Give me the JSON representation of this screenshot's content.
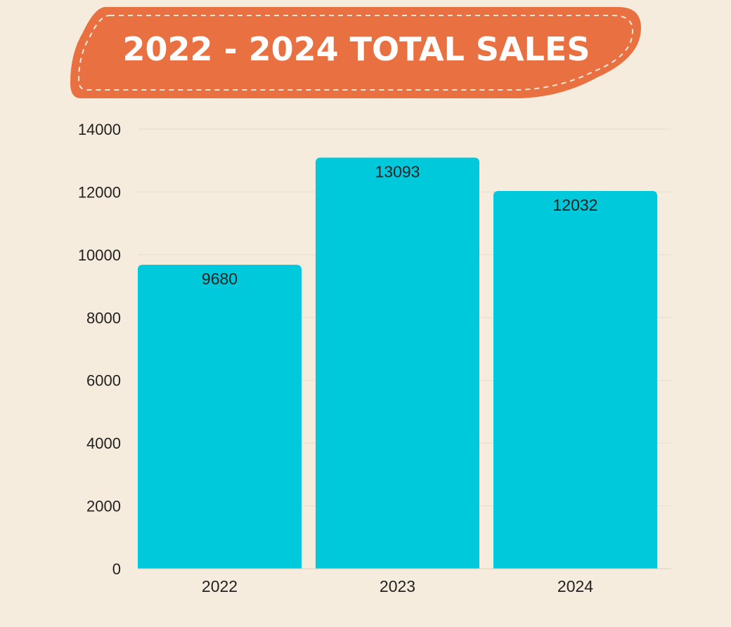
{
  "colors": {
    "background": "#f6ecdd",
    "banner": "#e97141",
    "bar": "#00c9dc",
    "grid": "#e8dccb",
    "text": "#222222"
  },
  "chart_data": {
    "type": "bar",
    "title": "2022 - 2024 TOTAL SALES",
    "xlabel": "",
    "ylabel": "",
    "categories": [
      "2022",
      "2023",
      "2024"
    ],
    "values": [
      9680,
      13093,
      12032
    ],
    "data_labels": [
      "9680",
      "13093",
      "12032"
    ],
    "ylim": [
      0,
      14000
    ],
    "yticks": [
      0,
      2000,
      4000,
      6000,
      8000,
      10000,
      12000,
      14000
    ],
    "ytick_labels": [
      "0",
      "2000",
      "4000",
      "6000",
      "8000",
      "10000",
      "12000",
      "14000"
    ],
    "grid": true,
    "legend": "none"
  }
}
